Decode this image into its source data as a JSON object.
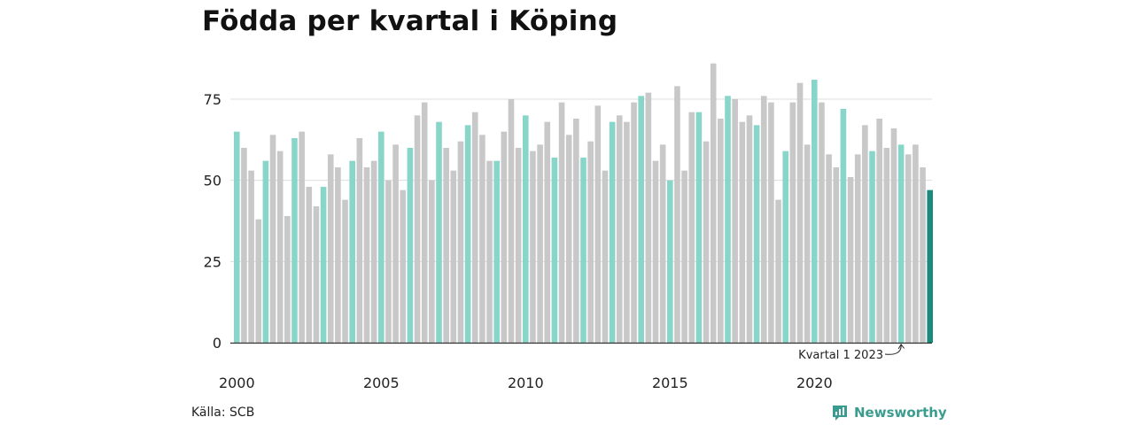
{
  "title": "Födda per kvartal i Köping",
  "source": "Källa: SCB",
  "brand": {
    "name": "Newsworthy",
    "icon": "newsworthy-logo-icon"
  },
  "colors": {
    "q1": "#88d5c9",
    "other": "#c8c8c8",
    "highlight": "#1a8a7d",
    "grid": "#dddddd",
    "axis": "#333333"
  },
  "chart_data": {
    "type": "bar",
    "title": "Födda per kvartal i Köping",
    "xlabel": "",
    "ylabel": "",
    "ylim": [
      0,
      90
    ],
    "yticks": [
      0,
      25,
      50,
      75
    ],
    "xticks": [
      "2000",
      "2005",
      "2010",
      "2015",
      "2020"
    ],
    "grid": true,
    "start_year": 2000,
    "values": [
      65,
      60,
      53,
      38,
      56,
      64,
      59,
      39,
      63,
      65,
      48,
      42,
      48,
      58,
      54,
      44,
      56,
      63,
      54,
      56,
      65,
      50,
      61,
      47,
      60,
      70,
      74,
      50,
      68,
      60,
      53,
      62,
      67,
      71,
      64,
      56,
      56,
      65,
      75,
      60,
      70,
      59,
      61,
      68,
      57,
      74,
      64,
      69,
      57,
      62,
      73,
      53,
      68,
      70,
      68,
      74,
      76,
      77,
      56,
      61,
      50,
      79,
      53,
      71,
      71,
      62,
      86,
      69,
      76,
      75,
      68,
      70,
      67,
      76,
      74,
      44,
      59,
      74,
      80,
      61,
      81,
      74,
      58,
      54,
      72,
      51,
      58,
      67,
      59,
      69,
      60,
      66,
      61,
      58,
      61,
      54,
      47
    ],
    "annotation": {
      "text": "Kvartal 1 2023"
    }
  }
}
